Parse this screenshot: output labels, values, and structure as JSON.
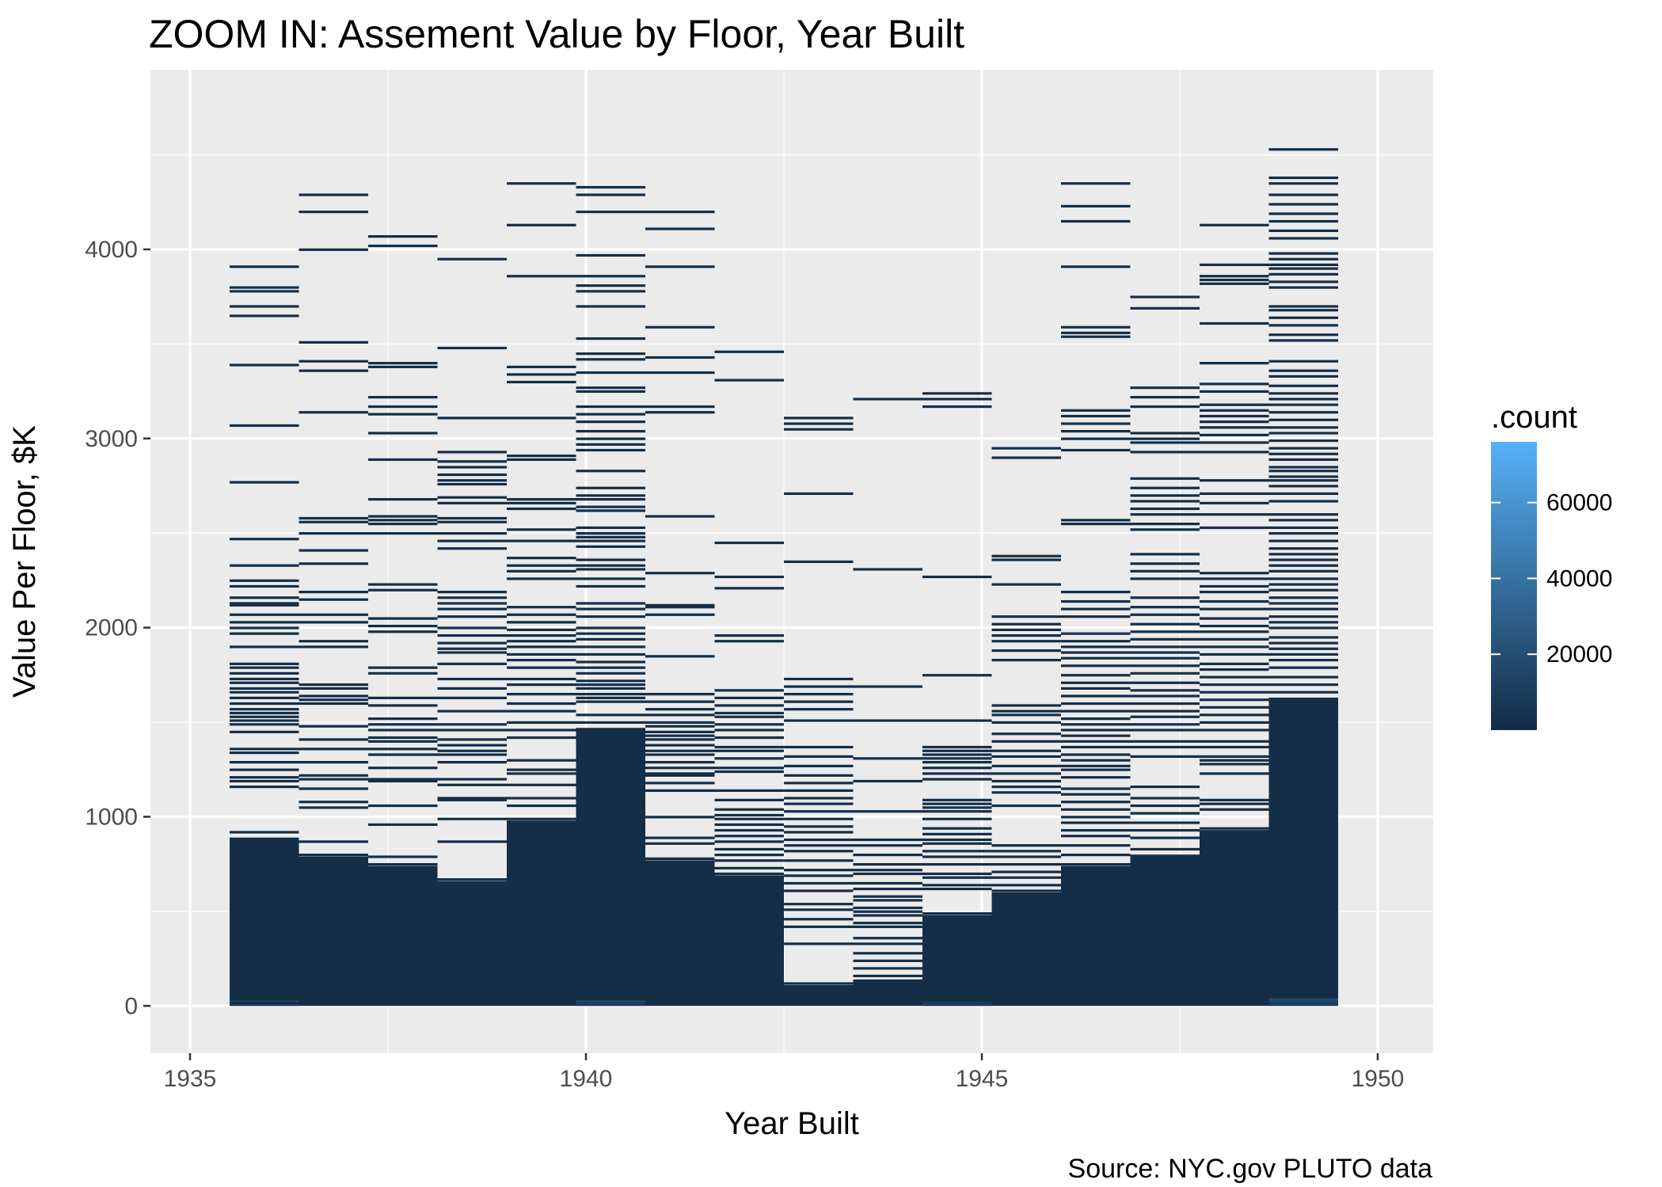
{
  "chart_data": {
    "type": "heatmap",
    "title": "ZOOM IN: Assement Value by Floor, Year Built",
    "xlabel": "Year Built",
    "ylabel": "Value Per Floor, $K",
    "caption": "Source: NYC.gov PLUTO data",
    "xlim": [
      1934.5,
      1950.7
    ],
    "ylim": [
      -250,
      4950
    ],
    "x_ticks": [
      1935,
      1940,
      1945,
      1950
    ],
    "y_ticks": [
      0,
      1000,
      2000,
      3000,
      4000
    ],
    "grid": true,
    "legend": {
      "title": ".count",
      "position": "right",
      "range": [
        0,
        76000
      ],
      "breaks": [
        20000,
        40000,
        60000
      ],
      "low_color": "#132B43",
      "high_color": "#56B1F7"
    },
    "bin_width_x": 0.875,
    "bin_height_y": 10,
    "columns": [
      {
        "x_start": 1935.5,
        "solid_top": 890,
        "lines": [
          920,
          1160,
          1190,
          1210,
          1250,
          1290,
          1340,
          1360,
          1450,
          1490,
          1510,
          1530,
          1550,
          1570,
          1600,
          1630,
          1660,
          1680,
          1710,
          1730,
          1760,
          1790,
          1810,
          1900,
          1970,
          2000,
          2030,
          2070,
          2120,
          2130,
          2160,
          2220,
          2250,
          2330,
          2470,
          2770,
          3070,
          3390,
          3650,
          3700,
          3780,
          3800,
          3910
        ],
        "light_bins": [
          0,
          20
        ]
      },
      {
        "x_start": 1936.375,
        "solid_top": 790,
        "lines": [
          800,
          870,
          1050,
          1080,
          1150,
          1200,
          1220,
          1290,
          1360,
          1410,
          1480,
          1600,
          1620,
          1640,
          1680,
          1700,
          1900,
          1930,
          2030,
          2070,
          2150,
          2190,
          2340,
          2410,
          2500,
          2560,
          2580,
          3140,
          3360,
          3410,
          3510,
          4000,
          4200,
          4290
        ],
        "light_bins": []
      },
      {
        "x_start": 1937.25,
        "solid_top": 740,
        "lines": [
          750,
          790,
          960,
          1060,
          1190,
          1200,
          1260,
          1330,
          1360,
          1400,
          1420,
          1460,
          1490,
          1520,
          1590,
          1630,
          1760,
          1790,
          1980,
          2010,
          2050,
          2200,
          2230,
          2500,
          2550,
          2570,
          2590,
          2680,
          2890,
          3030,
          3130,
          3170,
          3220,
          3380,
          3400,
          4020,
          4070
        ],
        "light_bins": []
      },
      {
        "x_start": 1938.125,
        "solid_top": 660,
        "lines": [
          670,
          870,
          990,
          1090,
          1100,
          1170,
          1200,
          1290,
          1330,
          1350,
          1380,
          1410,
          1460,
          1490,
          1560,
          1630,
          1680,
          1730,
          1810,
          1870,
          1890,
          1920,
          1960,
          2000,
          2060,
          2100,
          2130,
          2160,
          2190,
          2420,
          2460,
          2500,
          2560,
          2580,
          2660,
          2690,
          2760,
          2780,
          2810,
          2850,
          2880,
          2930,
          3110,
          3480,
          3950
        ],
        "light_bins": []
      },
      {
        "x_start": 1939.0,
        "solid_top": 980,
        "lines": [
          990,
          1060,
          1100,
          1170,
          1230,
          1250,
          1300,
          1420,
          1460,
          1500,
          1560,
          1600,
          1650,
          1700,
          1730,
          1790,
          1830,
          1860,
          1900,
          1930,
          1960,
          1990,
          2030,
          2070,
          2110,
          2260,
          2300,
          2330,
          2370,
          2460,
          2520,
          2630,
          2660,
          2680,
          2890,
          2910,
          3110,
          3300,
          3340,
          3380,
          3860,
          4130,
          4350
        ],
        "light_bins": []
      },
      {
        "x_start": 1939.875,
        "solid_top": 1470,
        "lines": [
          1500,
          1540,
          1610,
          1630,
          1650,
          1680,
          1700,
          1720,
          1760,
          1790,
          1820,
          1860,
          1900,
          1940,
          1970,
          2000,
          2060,
          2100,
          2130,
          2220,
          2260,
          2310,
          2330,
          2360,
          2430,
          2460,
          2480,
          2500,
          2530,
          2620,
          2640,
          2680,
          2700,
          2740,
          2830,
          2940,
          2970,
          3000,
          3040,
          3090,
          3130,
          3170,
          3250,
          3270,
          3350,
          3420,
          3450,
          3530,
          3700,
          3780,
          3810,
          3860,
          3970,
          4200,
          4290,
          4330
        ],
        "light_bins": [
          0,
          10,
          20
        ]
      },
      {
        "x_start": 1940.75,
        "solid_top": 770,
        "lines": [
          780,
          860,
          890,
          1000,
          1140,
          1180,
          1220,
          1230,
          1260,
          1290,
          1330,
          1350,
          1380,
          1410,
          1430,
          1450,
          1480,
          1500,
          1540,
          1570,
          1610,
          1650,
          1850,
          2070,
          2110,
          2120,
          2290,
          2590,
          3140,
          3170,
          3350,
          3430,
          3590,
          3910,
          4110,
          4200
        ],
        "light_bins": []
      },
      {
        "x_start": 1941.625,
        "solid_top": 690,
        "lines": [
          700,
          730,
          770,
          800,
          830,
          870,
          900,
          930,
          960,
          990,
          1010,
          1040,
          1090,
          1140,
          1240,
          1260,
          1310,
          1350,
          1370,
          1420,
          1460,
          1490,
          1530,
          1550,
          1590,
          1630,
          1670,
          1930,
          1960,
          2210,
          2270,
          2450,
          3310,
          3460
        ],
        "light_bins": []
      },
      {
        "x_start": 1942.5,
        "solid_top": 110,
        "lines": [
          120,
          330,
          420,
          460,
          510,
          540,
          610,
          650,
          690,
          720,
          770,
          820,
          850,
          880,
          920,
          950,
          990,
          1030,
          1070,
          1100,
          1140,
          1180,
          1220,
          1270,
          1320,
          1370,
          1510,
          1570,
          1610,
          1650,
          1690,
          1730,
          2350,
          2710,
          3050,
          3080,
          3110
        ],
        "light_bins": []
      },
      {
        "x_start": 1943.375,
        "solid_top": 140,
        "lines": [
          160,
          200,
          240,
          280,
          330,
          360,
          420,
          440,
          480,
          500,
          520,
          560,
          580,
          620,
          650,
          700,
          720,
          750,
          800,
          850,
          880,
          1030,
          1190,
          1310,
          1510,
          1690,
          2310,
          3210
        ],
        "light_bins": []
      },
      {
        "x_start": 1944.25,
        "solid_top": 480,
        "lines": [
          490,
          620,
          640,
          680,
          700,
          750,
          790,
          820,
          860,
          880,
          910,
          940,
          990,
          1030,
          1050,
          1070,
          1090,
          1200,
          1230,
          1260,
          1290,
          1310,
          1330,
          1350,
          1370,
          1510,
          1750,
          2270,
          3170,
          3210,
          3240
        ],
        "light_bins": [
          0,
          10
        ]
      },
      {
        "x_start": 1945.125,
        "solid_top": 600,
        "lines": [
          610,
          640,
          680,
          710,
          750,
          790,
          820,
          850,
          1060,
          1130,
          1160,
          1190,
          1230,
          1270,
          1320,
          1350,
          1400,
          1440,
          1500,
          1540,
          1560,
          1590,
          1830,
          1880,
          1930,
          1960,
          1990,
          2020,
          2060,
          2230,
          2360,
          2380,
          2900,
          2950
        ],
        "light_bins": []
      },
      {
        "x_start": 1946.0,
        "solid_top": 740,
        "lines": [
          750,
          800,
          850,
          900,
          930,
          970,
          1000,
          1040,
          1080,
          1120,
          1150,
          1210,
          1250,
          1270,
          1300,
          1330,
          1370,
          1400,
          1430,
          1460,
          1490,
          1520,
          1560,
          1600,
          1640,
          1680,
          1710,
          1750,
          1800,
          1840,
          1870,
          1900,
          1930,
          1970,
          2060,
          2100,
          2140,
          2190,
          2550,
          2570,
          2940,
          3000,
          3040,
          3080,
          3120,
          3150,
          3540,
          3560,
          3590,
          3910,
          4150,
          4230,
          4350
        ],
        "light_bins": []
      },
      {
        "x_start": 1946.875,
        "solid_top": 800,
        "lines": [
          830,
          890,
          930,
          970,
          1020,
          1060,
          1100,
          1160,
          1320,
          1370,
          1400,
          1460,
          1490,
          1530,
          1560,
          1600,
          1640,
          1670,
          1710,
          1760,
          1800,
          1840,
          1870,
          1900,
          1940,
          1980,
          2020,
          2070,
          2110,
          2160,
          2260,
          2300,
          2340,
          2390,
          2520,
          2550,
          2600,
          2630,
          2670,
          2700,
          2740,
          2790,
          2930,
          2980,
          3000,
          3030,
          3170,
          3220,
          3270,
          3690,
          3750
        ],
        "light_bins": []
      },
      {
        "x_start": 1947.75,
        "solid_top": 930,
        "lines": [
          940,
          1040,
          1070,
          1090,
          1230,
          1280,
          1300,
          1320,
          1370,
          1400,
          1460,
          1500,
          1540,
          1580,
          1620,
          1660,
          1700,
          1740,
          1780,
          1810,
          1860,
          1900,
          1940,
          1980,
          2010,
          2050,
          2100,
          2140,
          2190,
          2220,
          2260,
          2290,
          2530,
          2600,
          2660,
          2710,
          2780,
          2930,
          2980,
          3020,
          3060,
          3090,
          3120,
          3150,
          3180,
          3250,
          3290,
          3400,
          3610,
          3820,
          3840,
          3860,
          3920,
          4130
        ],
        "light_bins": []
      },
      {
        "x_start": 1948.625,
        "solid_top": 1630,
        "lines": [
          1660,
          1700,
          1740,
          1790,
          1830,
          1860,
          1890,
          1920,
          1950,
          2000,
          2030,
          2060,
          2100,
          2130,
          2160,
          2200,
          2230,
          2260,
          2300,
          2330,
          2360,
          2390,
          2420,
          2460,
          2500,
          2530,
          2570,
          2600,
          2670,
          2710,
          2750,
          2780,
          2800,
          2830,
          2850,
          2890,
          2920,
          2950,
          2990,
          3030,
          3060,
          3100,
          3140,
          3180,
          3210,
          3240,
          3280,
          3330,
          3360,
          3410,
          3520,
          3550,
          3600,
          3640,
          3680,
          3700,
          3800,
          3830,
          3870,
          3900,
          3920,
          3950,
          3980,
          4060,
          4100,
          4150,
          4190,
          4240,
          4290,
          4350,
          4380,
          4530
        ],
        "light_bins": [
          0,
          10,
          20,
          30
        ]
      }
    ]
  }
}
